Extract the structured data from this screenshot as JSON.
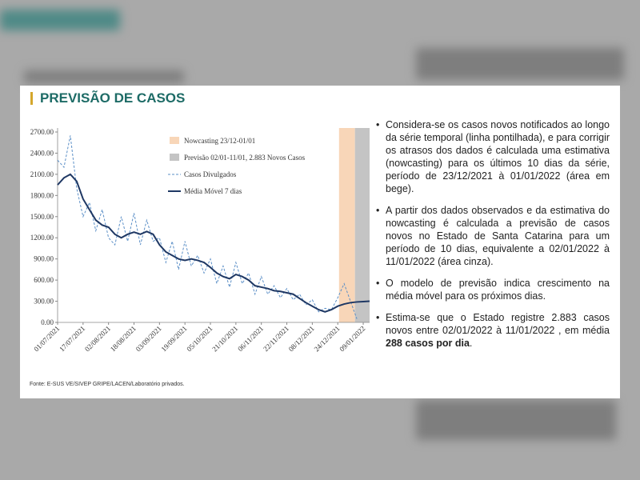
{
  "header": {
    "title": "PREVISÃO DE CASOS"
  },
  "chart_data": {
    "type": "line",
    "x": [
      "01/07/2021",
      "05/07/2021",
      "09/07/2021",
      "13/07/2021",
      "17/07/2021",
      "21/07/2021",
      "25/07/2021",
      "29/07/2021",
      "02/08/2021",
      "06/08/2021",
      "10/08/2021",
      "14/08/2021",
      "18/08/2021",
      "22/08/2021",
      "26/08/2021",
      "30/08/2021",
      "03/09/2021",
      "07/09/2021",
      "11/09/2021",
      "15/09/2021",
      "19/09/2021",
      "23/09/2021",
      "27/09/2021",
      "01/10/2021",
      "05/10/2021",
      "09/10/2021",
      "13/10/2021",
      "17/10/2021",
      "21/10/2021",
      "25/10/2021",
      "29/10/2021",
      "02/11/2021",
      "06/11/2021",
      "10/11/2021",
      "14/11/2021",
      "18/11/2021",
      "22/11/2021",
      "26/11/2021",
      "30/11/2021",
      "04/12/2021",
      "08/12/2021",
      "12/12/2021",
      "16/12/2021",
      "20/12/2021",
      "24/12/2021",
      "28/12/2021",
      "01/01/2022",
      "05/01/2022",
      "09/01/2022",
      "13/01/2022"
    ],
    "xticks": [
      "01/07/2021",
      "17/07/2021",
      "02/08/2021",
      "18/08/2021",
      "03/09/2021",
      "19/09/2021",
      "05/10/2021",
      "21/10/2021",
      "06/11/2021",
      "22/11/2021",
      "08/12/2021",
      "24/12/2021",
      "09/01/2022"
    ],
    "bands": [
      {
        "name": "Nowcasting 23/12-01/01",
        "color": "#f8d6b8"
      },
      {
        "name": "Previsão 02/01-11/01,  2.883 Novos Casos",
        "color": "#c4c4c4"
      }
    ],
    "series": [
      {
        "name": "Casos Divulgados",
        "color": "#5b8fc7",
        "dashed": true,
        "values": [
          2300,
          2200,
          2650,
          1900,
          1500,
          1700,
          1300,
          1600,
          1200,
          1100,
          1500,
          1150,
          1550,
          1100,
          1450,
          1150,
          1200,
          850,
          1150,
          750,
          1150,
          800,
          950,
          700,
          900,
          550,
          800,
          500,
          850,
          550,
          700,
          400,
          650,
          400,
          520,
          350,
          480,
          320,
          400,
          250,
          320,
          150,
          200,
          180,
          350,
          550,
          300,
          50,
          null,
          null
        ]
      },
      {
        "name": "Média Móvel 7 dias",
        "color": "#1f3864",
        "dashed": false,
        "values": [
          1950,
          2050,
          2100,
          2000,
          1750,
          1600,
          1450,
          1380,
          1350,
          1250,
          1200,
          1250,
          1280,
          1250,
          1290,
          1250,
          1100,
          1000,
          950,
          900,
          880,
          900,
          880,
          850,
          780,
          700,
          650,
          620,
          680,
          650,
          600,
          520,
          500,
          480,
          450,
          440,
          420,
          400,
          340,
          280,
          230,
          180,
          150,
          180,
          230,
          260,
          280,
          290,
          295,
          300
        ]
      }
    ],
    "ylim": [
      0,
      2700
    ],
    "yticks": [
      {
        "value": 0,
        "label": "0.00"
      },
      {
        "value": 300,
        "label": "300.00"
      },
      {
        "value": 600,
        "label": "600.00"
      },
      {
        "value": 900,
        "label": "900.00"
      },
      {
        "value": 1200,
        "label": "1200.00"
      },
      {
        "value": 1500,
        "label": "1500.00"
      },
      {
        "value": 1800,
        "label": "1800.00"
      },
      {
        "value": 2100,
        "label": "2100.00"
      },
      {
        "value": 2400,
        "label": "2400.00"
      },
      {
        "value": 2700,
        "label": "2700.00"
      }
    ]
  },
  "bullets": [
    [
      {
        "text": "Considera-se os casos novos notificados ao longo da série temporal (linha pontilhada), e para corrigir os atrasos dos dados é calculada uma estimativa (nowcasting) para os últimos 10 dias da série, período de 23/12/2021 à 01/01/2022 (área em bege)."
      }
    ],
    [
      {
        "text": "A partir dos dados observados e da estimativa do nowcasting é calculada a previsão de casos novos no Estado de Santa Catarina para um período de 10 dias, equivalente a 02/01/2022 à 11/01/2022 (área cinza)."
      }
    ],
    [
      {
        "text": "O modelo de previsão indica crescimento na média móvel para os próximos dias."
      }
    ],
    [
      {
        "text": "Estima-se que o Estado registre 2.883 casos novos entre 02/01/2022 à 11/01/2022 , em média "
      },
      {
        "text": "288 casos  por dia",
        "bold": true
      },
      {
        "text": "."
      }
    ]
  ],
  "source": "Fonte: E-SUS VE/SIVEP GRIPE/LACEN/Laboratório privados."
}
